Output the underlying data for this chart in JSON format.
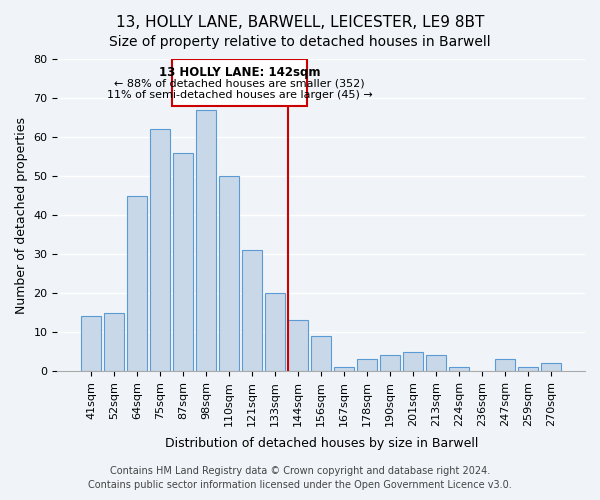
{
  "title": "13, HOLLY LANE, BARWELL, LEICESTER, LE9 8BT",
  "subtitle": "Size of property relative to detached houses in Barwell",
  "xlabel": "Distribution of detached houses by size in Barwell",
  "ylabel": "Number of detached properties",
  "bin_labels": [
    "41sqm",
    "52sqm",
    "64sqm",
    "75sqm",
    "87sqm",
    "98sqm",
    "110sqm",
    "121sqm",
    "133sqm",
    "144sqm",
    "156sqm",
    "167sqm",
    "178sqm",
    "190sqm",
    "201sqm",
    "213sqm",
    "224sqm",
    "236sqm",
    "247sqm",
    "259sqm",
    "270sqm"
  ],
  "bar_values": [
    14,
    15,
    45,
    62,
    56,
    67,
    50,
    31,
    20,
    13,
    9,
    1,
    3,
    4,
    5,
    4,
    1,
    0,
    3,
    1,
    2
  ],
  "bar_color": "#c8d8e8",
  "bar_edge_color": "#5b9bd5",
  "vline_x_index": 9,
  "vline_color": "#cc0000",
  "annotation_title": "13 HOLLY LANE: 142sqm",
  "annotation_line1": "← 88% of detached houses are smaller (352)",
  "annotation_line2": "11% of semi-detached houses are larger (45) →",
  "annotation_box_color": "#ffffff",
  "annotation_box_edge": "#cc0000",
  "ylim": [
    0,
    80
  ],
  "yticks": [
    0,
    10,
    20,
    30,
    40,
    50,
    60,
    70,
    80
  ],
  "footer_line1": "Contains HM Land Registry data © Crown copyright and database right 2024.",
  "footer_line2": "Contains public sector information licensed under the Open Government Licence v3.0.",
  "background_color": "#f0f4f8",
  "grid_color": "#ffffff",
  "title_fontsize": 11,
  "subtitle_fontsize": 10,
  "axis_label_fontsize": 9,
  "tick_fontsize": 8,
  "footer_fontsize": 7
}
